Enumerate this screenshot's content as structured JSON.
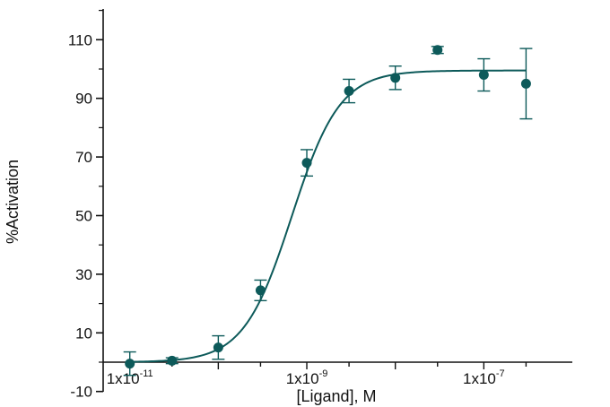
{
  "chart_data": {
    "type": "scatter",
    "title": "",
    "xlabel": "[Ligand], M",
    "ylabel": "%Activation",
    "x_scale": "log",
    "xlim": [
      5e-12,
      1e-06
    ],
    "ylim": [
      -10,
      120
    ],
    "y_ticks": [
      -10,
      10,
      30,
      50,
      70,
      90,
      110
    ],
    "x_tick_labels": [
      {
        "value": 1e-11,
        "mantissa": "1x10",
        "exponent": "-11"
      },
      {
        "value": 1e-09,
        "mantissa": "1x10",
        "exponent": "-9"
      },
      {
        "value": 1e-07,
        "mantissa": "1x10",
        "exponent": "-7"
      }
    ],
    "x_minor_ticks": [
      1e-11,
      3e-11,
      1e-10,
      3e-10,
      1e-09,
      3e-09,
      1e-08,
      3e-08,
      1e-07,
      3e-07
    ],
    "grid": false,
    "color": "#0d5a5a",
    "points": [
      {
        "x": 1e-11,
        "y": -0.5,
        "err": 4.0
      },
      {
        "x": 3e-11,
        "y": 0.5,
        "err": 1.0
      },
      {
        "x": 1e-10,
        "y": 5,
        "err": 4.0
      },
      {
        "x": 3e-10,
        "y": 24.5,
        "err": 3.5
      },
      {
        "x": 1e-09,
        "y": 68,
        "err": 4.5
      },
      {
        "x": 3e-09,
        "y": 92.5,
        "err": 4.0
      },
      {
        "x": 1e-08,
        "y": 97,
        "err": 4.0
      },
      {
        "x": 3e-08,
        "y": 106.5,
        "err": 1.2
      },
      {
        "x": 1e-07,
        "y": 98,
        "err": 5.5
      },
      {
        "x": 3e-07,
        "y": 95,
        "err": 12.0
      }
    ],
    "fit": {
      "model": "four-parameter logistic",
      "bottom": 0,
      "top": 99.5,
      "log_ec50": -9.17,
      "hill": 1.6
    }
  }
}
